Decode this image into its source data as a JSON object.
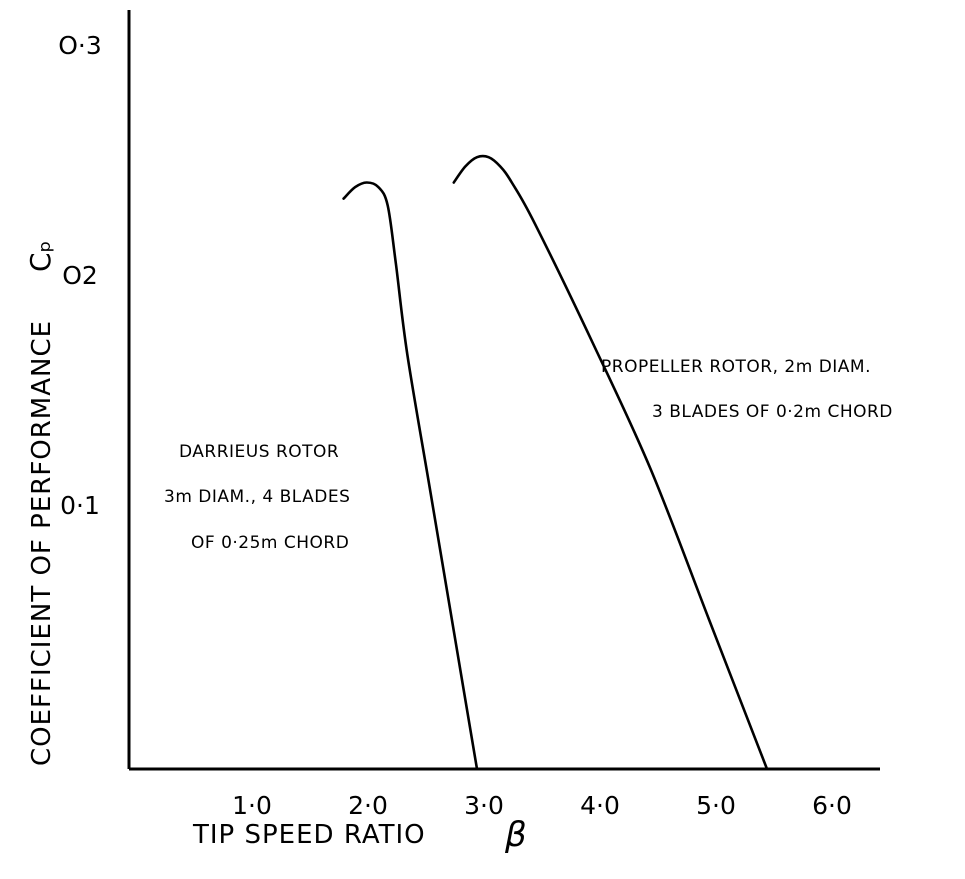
{
  "chart_data": {
    "type": "line",
    "xlabel": "TIP SPEED RATIO",
    "xsymbol": "β",
    "ylabel": "COEFFICIENT OF PERFORMANCE",
    "ysymbol": "Cₚ",
    "xlim": [
      0,
      6.5
    ],
    "ylim": [
      0,
      0.33
    ],
    "x_ticks": [
      {
        "value": 1.0,
        "label": "1·0"
      },
      {
        "value": 2.0,
        "label": "2·0"
      },
      {
        "value": 3.0,
        "label": "3·0"
      },
      {
        "value": 4.0,
        "label": "4·0"
      },
      {
        "value": 5.0,
        "label": "5·0"
      },
      {
        "value": 6.0,
        "label": "6·0"
      }
    ],
    "y_ticks": [
      {
        "value": 0.1,
        "label": "0·1"
      },
      {
        "value": 0.2,
        "label": "O2"
      },
      {
        "value": 0.3,
        "label": "O·3"
      }
    ],
    "grid": false,
    "legend": "none",
    "series": [
      {
        "x": [
          1.85,
          1.95,
          2.05,
          2.15,
          2.23,
          2.3,
          2.4,
          2.6,
          2.8,
          3.0
        ],
        "y": [
          0.248,
          0.253,
          0.255,
          0.253,
          0.245,
          0.22,
          0.18,
          0.12,
          0.06,
          0.0
        ]
      },
      {
        "x": [
          2.8,
          2.9,
          3.0,
          3.1,
          3.2,
          3.3,
          3.5,
          4.0,
          4.5,
          5.0,
          5.5
        ],
        "y": [
          0.255,
          0.262,
          0.266,
          0.266,
          0.262,
          0.255,
          0.237,
          0.185,
          0.13,
          0.065,
          0.0
        ]
      }
    ],
    "annotations": [
      {
        "lines": [
          "DARRIEUS ROTOR",
          "3m DIAM., 4 BLADES",
          "OF 0·25m CHORD"
        ]
      },
      {
        "lines": [
          "PROPELLER ROTOR, 2m DIAM.",
          "3 BLADES OF 0·2m CHORD"
        ]
      }
    ]
  }
}
